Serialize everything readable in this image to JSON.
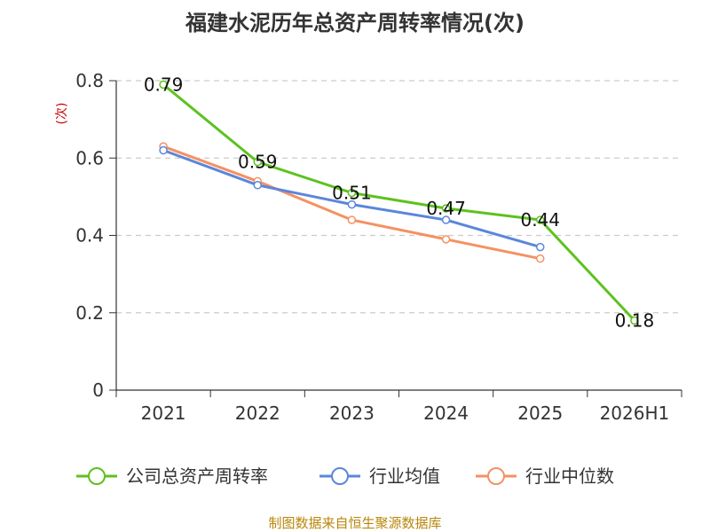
{
  "chart_data": {
    "type": "line",
    "title": "福建水泥历年总资产周转率情况(次)",
    "ylabel": "(次)",
    "xlabel": "",
    "categories": [
      "2021",
      "2022",
      "2023",
      "2024",
      "2025",
      "2026H1"
    ],
    "ylim": [
      0,
      0.8
    ],
    "yticks": [
      "0",
      "0.2",
      "0.4",
      "0.6",
      "0.8"
    ],
    "grid": true,
    "legend_position": "bottom",
    "series": [
      {
        "name": "公司总资产周转率",
        "color": "#5cc21e",
        "values": [
          0.79,
          0.59,
          0.51,
          0.47,
          0.44,
          0.18
        ],
        "labels": [
          "0.79",
          "0.59",
          "0.51",
          "0.47",
          "0.44",
          "0.18"
        ]
      },
      {
        "name": "行业均值",
        "color": "#5b86db",
        "values": [
          0.62,
          0.53,
          0.48,
          0.44,
          0.37,
          null
        ]
      },
      {
        "name": "行业中位数",
        "color": "#f59162",
        "values": [
          0.63,
          0.54,
          0.44,
          0.39,
          0.34,
          null
        ]
      }
    ]
  },
  "source": "制图数据来自恒生聚源数据库"
}
